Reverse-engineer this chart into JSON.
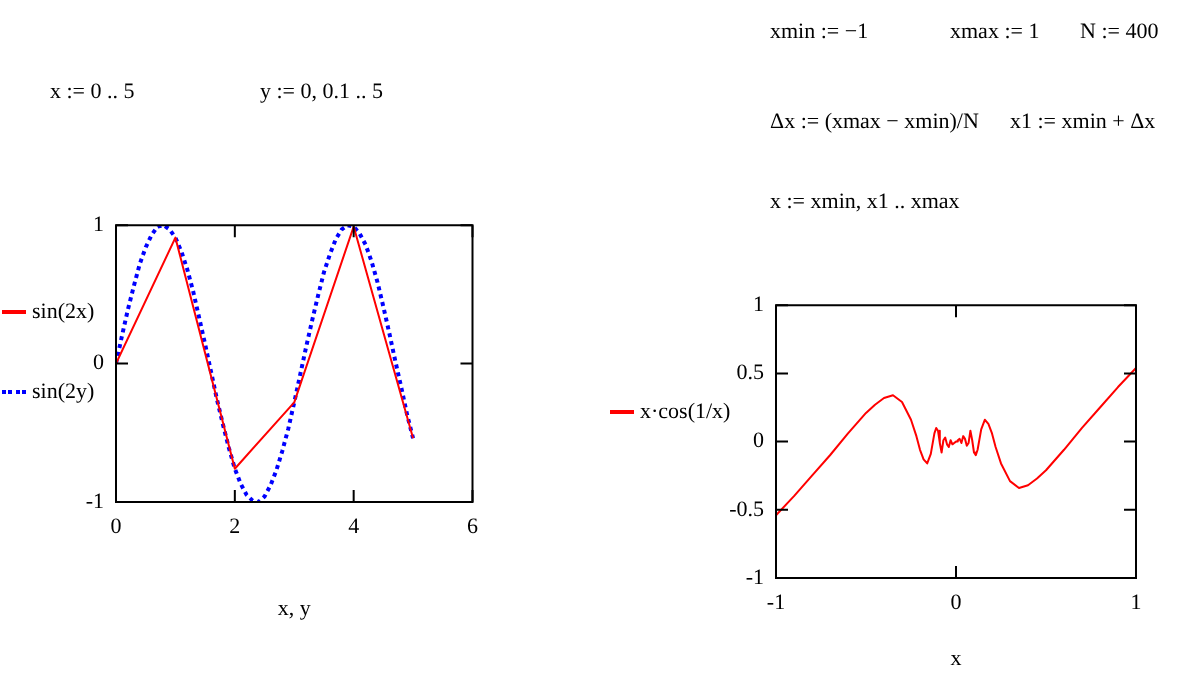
{
  "chart_data": [
    {
      "type": "line",
      "xlabel": "x, y",
      "xlim": [
        0,
        6
      ],
      "xticks": [
        0,
        2,
        4,
        6
      ],
      "ylim": [
        -1,
        1
      ],
      "yticks": [
        -1,
        0,
        1
      ],
      "legend": "left",
      "annotations": [
        "x := 0 .. 5",
        "y := 0, 0.1 .. 5"
      ],
      "series": [
        {
          "name": "sin(2x)",
          "color": "#ff0000",
          "line_style": "solid",
          "x": [
            0,
            1,
            2,
            3,
            4,
            5
          ],
          "values": [
            0,
            0.91,
            -0.76,
            -0.28,
            0.99,
            -0.54
          ]
        },
        {
          "name": "sin(2y)",
          "color": "#0000ff",
          "line_style": "dotted",
          "x": [
            0,
            0.1,
            0.2,
            0.3,
            0.4,
            0.5,
            0.6,
            0.7,
            0.8,
            0.9,
            1,
            1.1,
            1.2,
            1.3,
            1.4,
            1.5,
            1.6,
            1.7,
            1.8,
            1.9,
            2,
            2.1,
            2.2,
            2.3,
            2.4,
            2.5,
            2.6,
            2.7,
            2.8,
            2.9,
            3,
            3.1,
            3.2,
            3.3,
            3.4,
            3.5,
            3.6,
            3.7,
            3.8,
            3.9,
            4,
            4.1,
            4.2,
            4.3,
            4.4,
            4.5,
            4.6,
            4.7,
            4.8,
            4.9,
            5
          ],
          "values": [
            0,
            0.2,
            0.39,
            0.56,
            0.72,
            0.84,
            0.93,
            0.99,
            1,
            0.97,
            0.91,
            0.81,
            0.68,
            0.52,
            0.33,
            0.14,
            -0.06,
            -0.26,
            -0.44,
            -0.61,
            -0.76,
            -0.87,
            -0.95,
            -0.99,
            -1,
            -0.96,
            -0.88,
            -0.77,
            -0.63,
            -0.47,
            -0.28,
            -0.08,
            0.12,
            0.31,
            0.49,
            0.66,
            0.79,
            0.9,
            0.97,
            1,
            0.99,
            0.94,
            0.86,
            0.74,
            0.59,
            0.41,
            0.22,
            0.02,
            -0.17,
            -0.37,
            -0.54
          ]
        }
      ]
    },
    {
      "type": "line",
      "xlabel": "x",
      "xlim": [
        -1,
        1
      ],
      "xticks": [
        -1,
        0,
        1
      ],
      "ylim": [
        -1,
        1
      ],
      "yticks": [
        -1,
        -0.5,
        0,
        0.5,
        1
      ],
      "legend": "left",
      "annotations": [
        "xmin := −1",
        "xmax := 1",
        "N := 400",
        "Δx := (xmax − xmin)/N",
        "x1 := xmin + Δx",
        "x := xmin, x1 .. xmax"
      ],
      "series": [
        {
          "name": "x·cos(1/x)",
          "color": "#ff0000",
          "line_style": "solid",
          "x": [
            -1,
            -0.9,
            -0.8,
            -0.7,
            -0.6,
            -0.5,
            -0.45,
            -0.4,
            -0.35,
            -0.3,
            -0.25,
            -0.22,
            -0.2,
            -0.18,
            -0.16,
            -0.14,
            -0.12,
            -0.11,
            -0.1,
            -0.09,
            -0.08,
            -0.07,
            -0.06,
            -0.05,
            -0.04,
            -0.03,
            -0.02,
            -0.01,
            0,
            0.01,
            0.02,
            0.03,
            0.04,
            0.05,
            0.06,
            0.07,
            0.08,
            0.09,
            0.1,
            0.11,
            0.12,
            0.14,
            0.16,
            0.18,
            0.2,
            0.22,
            0.25,
            0.3,
            0.35,
            0.4,
            0.45,
            0.5,
            0.6,
            0.7,
            0.8,
            0.9,
            1
          ],
          "values": [
            -0.54,
            -0.4,
            -0.25,
            -0.1,
            0.06,
            0.21,
            0.27,
            0.32,
            0.34,
            0.29,
            0.16,
            0.04,
            -0.06,
            -0.13,
            -0.16,
            -0.09,
            0.06,
            0.1,
            0.08,
            -0.01,
            -0.08,
            0.01,
            0.03,
            -0.02,
            -0.04,
            0.01,
            -0.02,
            -0.01,
            0,
            0.01,
            0.02,
            -0.01,
            0.04,
            0.02,
            -0.03,
            -0.01,
            0.08,
            0.01,
            -0.08,
            -0.1,
            -0.06,
            0.09,
            0.16,
            0.13,
            0.06,
            -0.04,
            -0.16,
            -0.29,
            -0.34,
            -0.32,
            -0.27,
            -0.21,
            -0.06,
            0.1,
            0.25,
            0.4,
            0.54
          ]
        }
      ]
    }
  ]
}
